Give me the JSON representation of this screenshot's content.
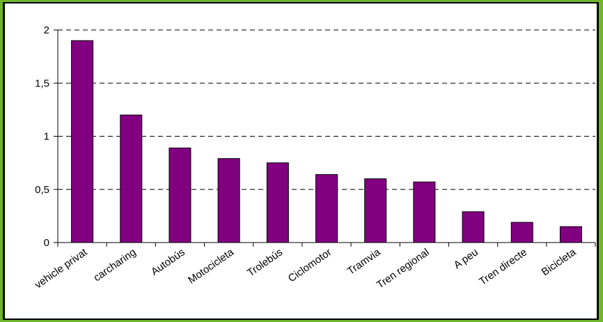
{
  "chart_data": {
    "type": "bar",
    "categories": [
      "vehicle privat",
      "carcharing",
      "Autobús",
      "Motocicleta",
      "Trolebús",
      "Ciclomotor",
      "Tramvia",
      "Tren regional",
      "A peu",
      "Tren directe",
      "Bicicleta"
    ],
    "values": [
      1.9,
      1.2,
      0.89,
      0.79,
      0.75,
      0.64,
      0.6,
      0.57,
      0.29,
      0.19,
      0.15
    ],
    "yticks": [
      "0",
      "0,5",
      "1",
      "1,5",
      "2"
    ],
    "ylim": [
      0,
      2
    ],
    "grid": true,
    "bar_color": "#800080",
    "title": "",
    "xlabel": "",
    "ylabel": ""
  }
}
